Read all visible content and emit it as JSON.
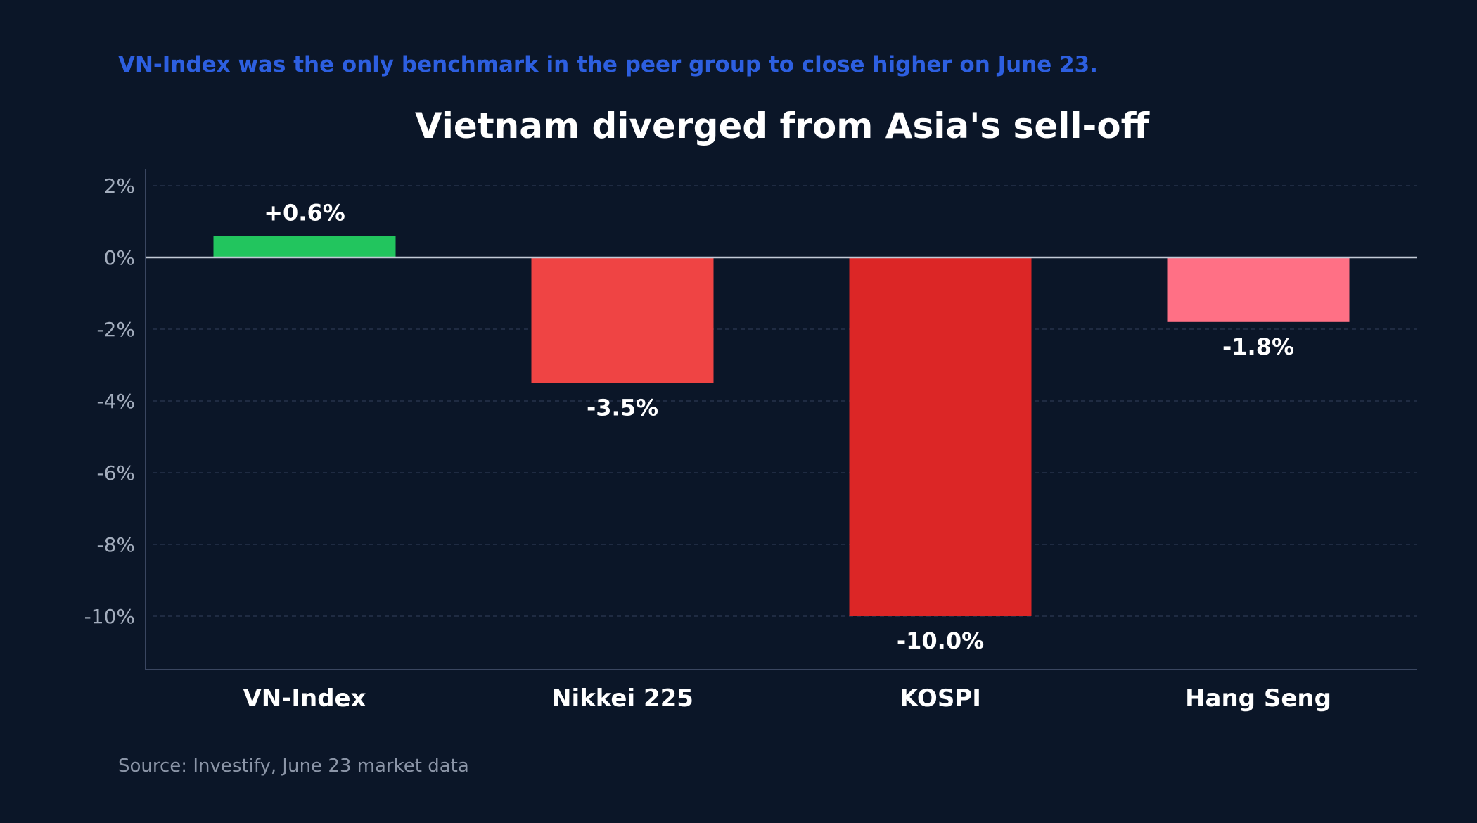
{
  "subtitle": "VN-Index was the only benchmark in the peer group to close higher on June 23.",
  "source": "Source: Investify, June 23 market data",
  "chart_data": {
    "type": "bar",
    "title": "Vietnam diverged from Asia's sell-off",
    "xlabel": "",
    "ylabel": "",
    "categories": [
      "VN-Index",
      "Nikkei 225",
      "KOSPI",
      "Hang Seng"
    ],
    "values": [
      0.6,
      -3.5,
      -10.0,
      -1.8
    ],
    "data_labels": [
      "+0.6%",
      "-3.5%",
      "-10.0%",
      "-1.8%"
    ],
    "bar_colors": [
      "#22c55e",
      "#ef4444",
      "#dc2626",
      "#ff7085"
    ],
    "yticks": [
      2,
      0,
      -2,
      -4,
      -6,
      -8,
      -10
    ],
    "ytick_labels": [
      "2%",
      "0%",
      "-2%",
      "-4%",
      "-6%",
      "-8%",
      "-10%"
    ],
    "ylim": [
      -11.5,
      2.5
    ],
    "grid": true,
    "legend": "none"
  }
}
